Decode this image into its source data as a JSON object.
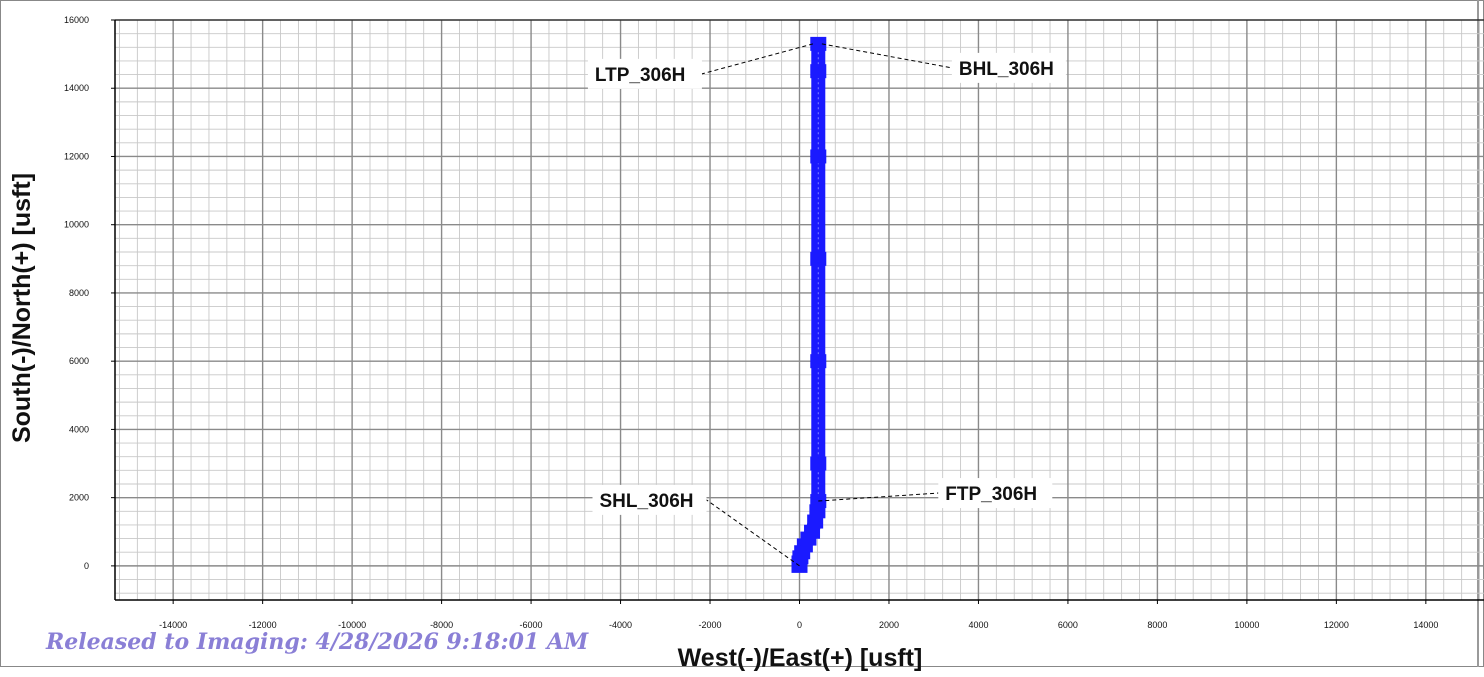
{
  "chart_data": {
    "type": "line",
    "title": "",
    "xlabel": "West(-)/East(+) [usft]",
    "ylabel": "South(-)/North(+) [usft]",
    "xlim": [
      -15300,
      15300
    ],
    "ylim": [
      -1000,
      16000
    ],
    "xticks": [
      -14000,
      -12000,
      -10000,
      -8000,
      -6000,
      -4000,
      -2000,
      0,
      2000,
      4000,
      6000,
      8000,
      10000,
      12000,
      14000
    ],
    "yticks": [
      0,
      2000,
      4000,
      6000,
      8000,
      10000,
      12000,
      14000,
      16000
    ],
    "grid": true,
    "series": [
      {
        "color": "#1a1aff",
        "x": [
          0,
          0,
          20,
          60,
          120,
          200,
          280,
          350,
          400,
          420,
          420,
          420,
          420,
          420,
          420,
          420
        ],
        "y": [
          0,
          100,
          250,
          400,
          600,
          800,
          1000,
          1300,
          1600,
          1900,
          3000,
          6000,
          9000,
          12000,
          14500,
          15300
        ]
      }
    ],
    "annotations": [
      {
        "label": "LTP_306H",
        "x": 300,
        "y": 15300
      },
      {
        "label": "BHL_306H",
        "x": 500,
        "y": 15300
      },
      {
        "label": "FTP_306H",
        "x": 420,
        "y": 1900
      },
      {
        "label": "SHL_306H",
        "x": 0,
        "y": 0
      }
    ]
  },
  "footer": {
    "released_text": "Released to Imaging: 4/28/2026 9:18:01 AM",
    "released_color": "#8a7fd6"
  }
}
